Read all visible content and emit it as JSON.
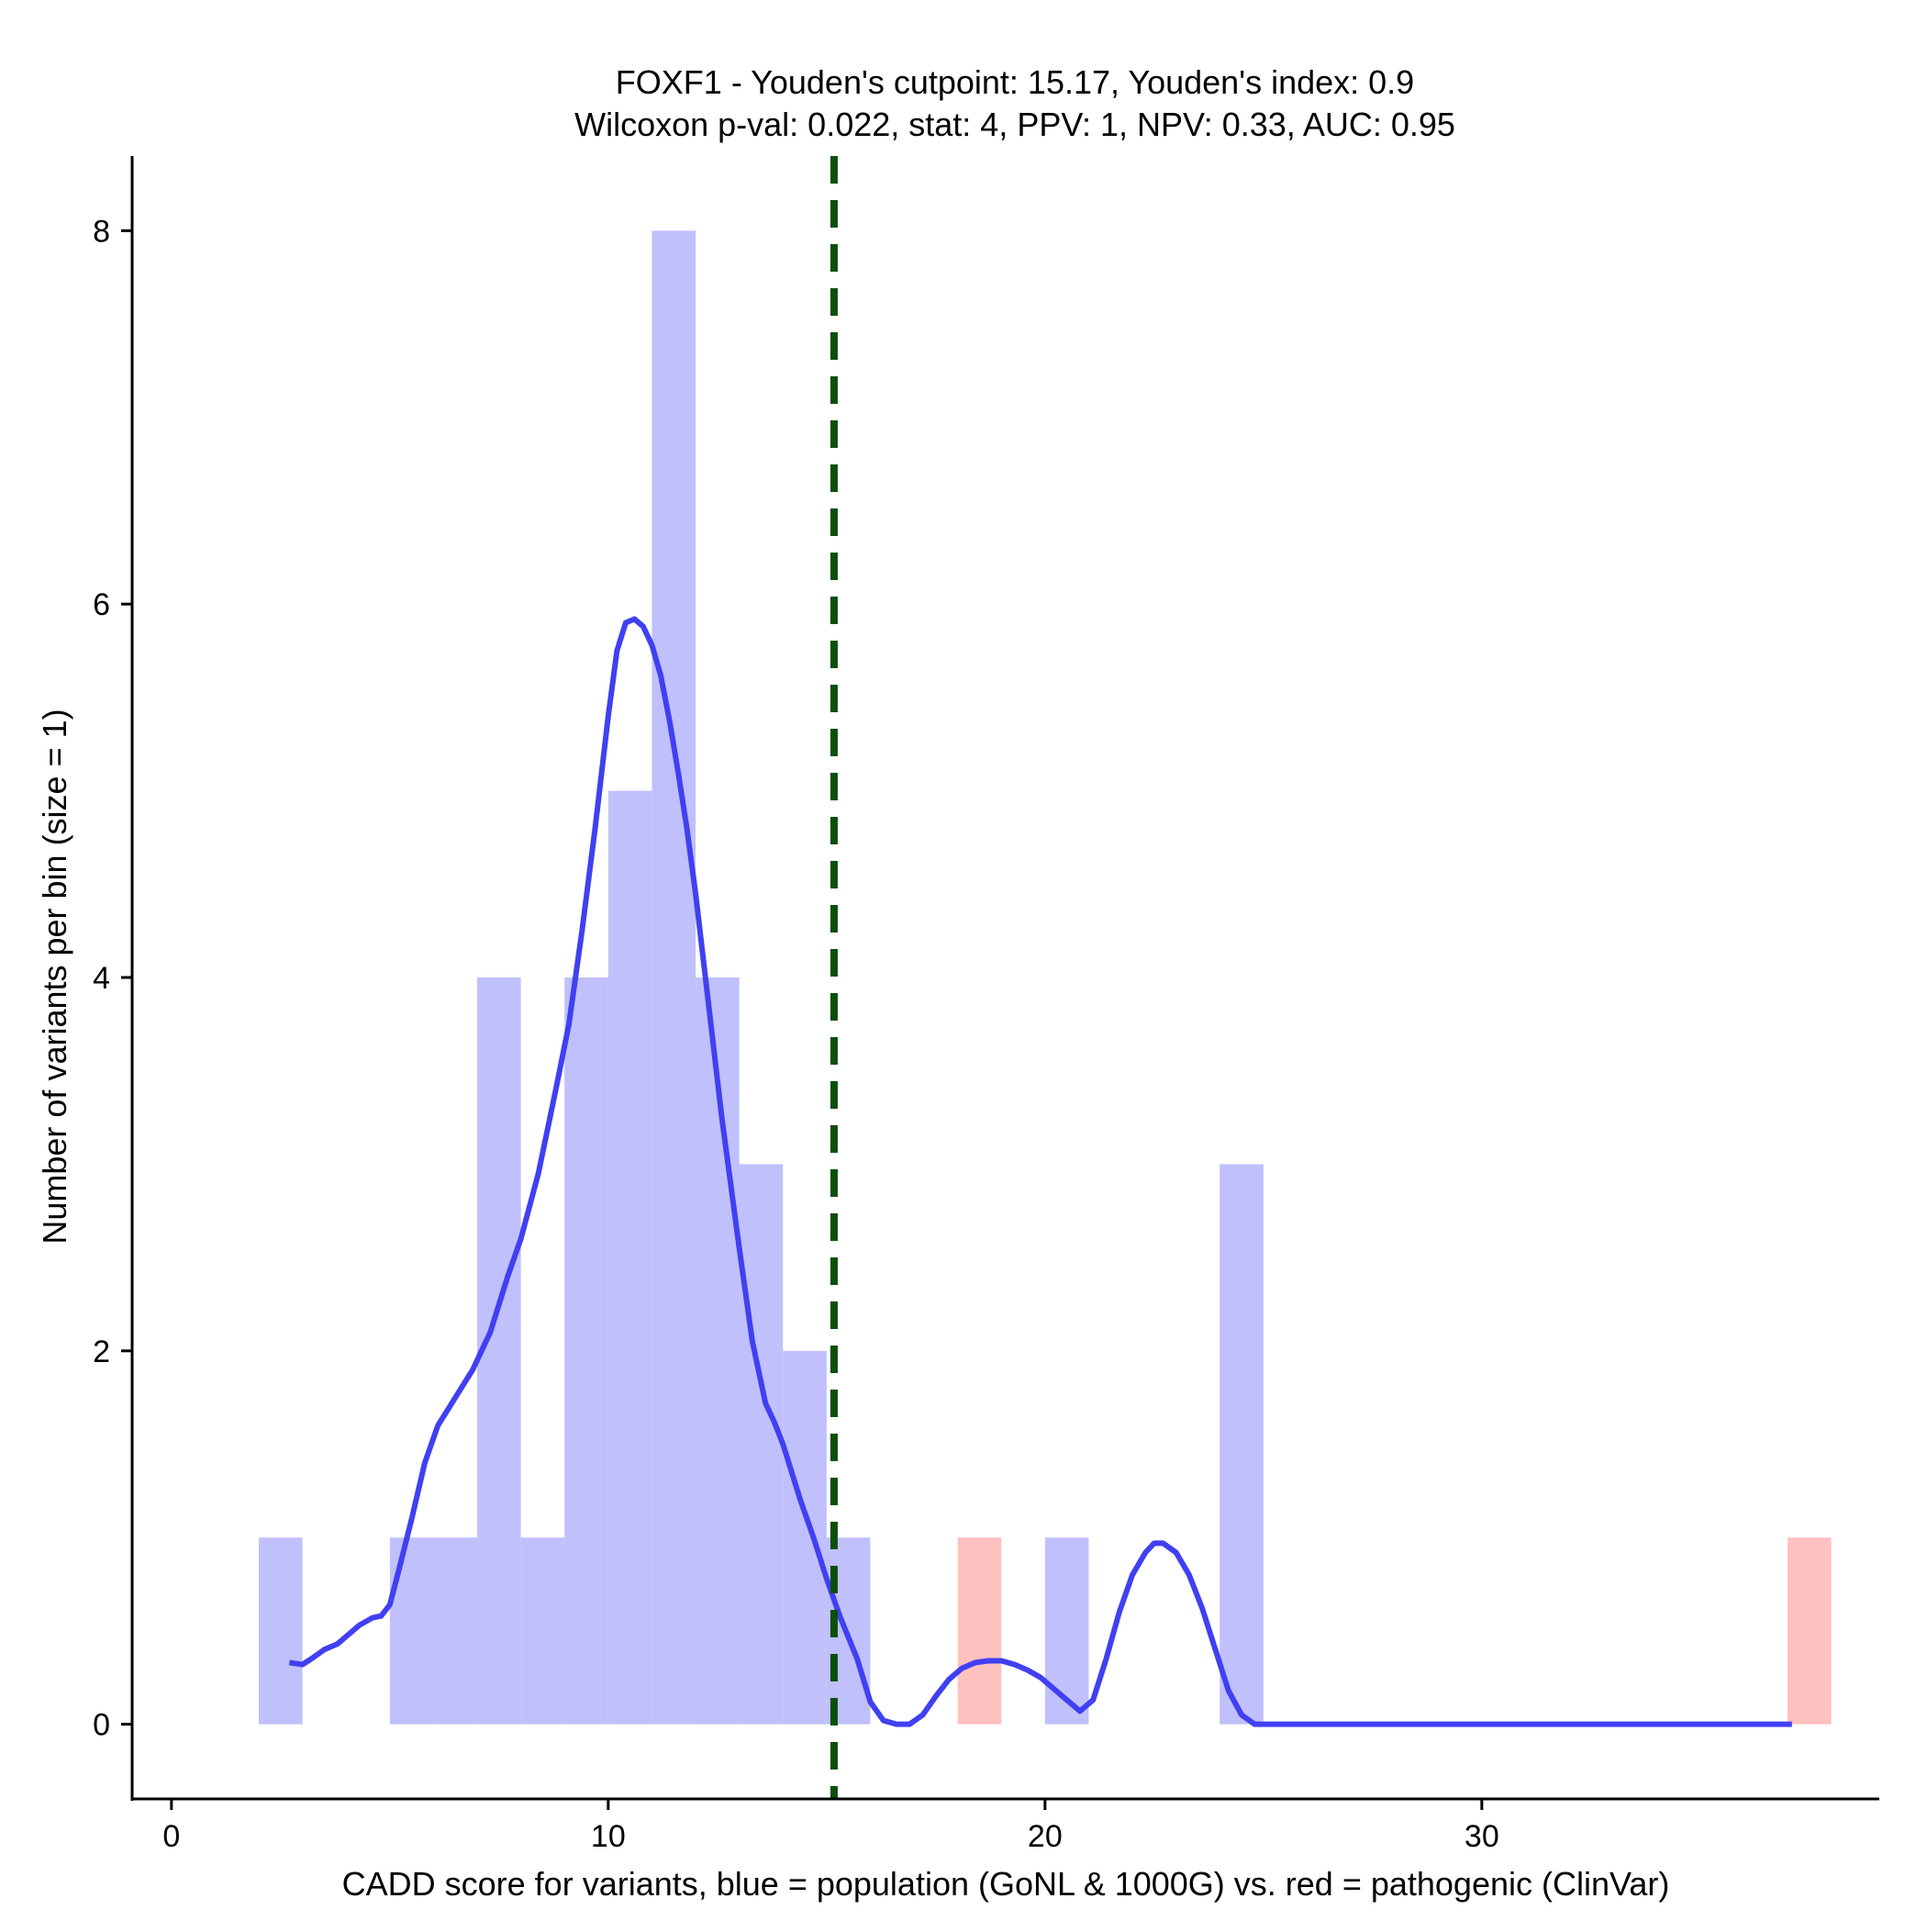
{
  "chart_data": {
    "type": "bar",
    "title": "FOXF1 - Youden's cutpoint: 15.17, Youden's index: 0.9",
    "subtitle": "Wilcoxon p-val: 0.022, stat: 4, PPV: 1, NPV: 0.33, AUC: 0.95",
    "xlabel": "CADD score for variants, blue = population (GoNL & 1000G) vs. red = pathogenic (ClinVar)",
    "ylabel": "Number of variants per bin (size = 1)",
    "xlim": [
      -0.9,
      39.1
    ],
    "ylim": [
      -0.4,
      8.4
    ],
    "x_ticks": [
      0,
      10,
      20,
      30
    ],
    "y_ticks": [
      0,
      2,
      4,
      6,
      8
    ],
    "bin_width": 1,
    "grid": false,
    "legend": "none",
    "cutpoint": 15.17,
    "colors": {
      "population": "#c0c0fc",
      "pathogenic": "#ffc0c0",
      "density": "#4040f2",
      "cutpoint": "#0b4f0b"
    },
    "series": [
      {
        "name": "population",
        "bins": [
          {
            "x0": 2,
            "x1": 3,
            "count": 1
          },
          {
            "x0": 5,
            "x1": 6,
            "count": 1
          },
          {
            "x0": 6,
            "x1": 7,
            "count": 1
          },
          {
            "x0": 7,
            "x1": 8,
            "count": 4
          },
          {
            "x0": 8,
            "x1": 9,
            "count": 1
          },
          {
            "x0": 9,
            "x1": 10,
            "count": 4
          },
          {
            "x0": 10,
            "x1": 11,
            "count": 5
          },
          {
            "x0": 11,
            "x1": 12,
            "count": 8
          },
          {
            "x0": 12,
            "x1": 13,
            "count": 4
          },
          {
            "x0": 13,
            "x1": 14,
            "count": 3
          },
          {
            "x0": 14,
            "x1": 15,
            "count": 2
          },
          {
            "x0": 15,
            "x1": 16,
            "count": 1
          },
          {
            "x0": 20,
            "x1": 21,
            "count": 1
          },
          {
            "x0": 24,
            "x1": 25,
            "count": 3
          }
        ]
      },
      {
        "name": "pathogenic",
        "bins": [
          {
            "x0": 18,
            "x1": 19,
            "count": 1
          },
          {
            "x0": 37,
            "x1": 38,
            "count": 1
          }
        ]
      }
    ],
    "density_curve": {
      "x": [
        2.7,
        3.0,
        3.2,
        3.5,
        3.8,
        4.0,
        4.3,
        4.6,
        4.8,
        5.0,
        5.2,
        5.5,
        5.8,
        6.1,
        6.5,
        6.9,
        7.3,
        7.7,
        8.0,
        8.4,
        8.8,
        9.1,
        9.4,
        9.7,
        10.0,
        10.2,
        10.4,
        10.6,
        10.8,
        11.0,
        11.2,
        11.4,
        11.6,
        11.8,
        12.0,
        12.2,
        12.4,
        12.6,
        12.8,
        13.0,
        13.3,
        13.6,
        13.8,
        14.0,
        14.2,
        14.4,
        14.7,
        15.0,
        15.3,
        15.7,
        16.0,
        16.3,
        16.6,
        16.9,
        17.2,
        17.5,
        17.8,
        18.1,
        18.4,
        18.7,
        19.0,
        19.3,
        19.6,
        19.9,
        20.2,
        20.5,
        20.8,
        21.1,
        21.4,
        21.7,
        22.0,
        22.3,
        22.5,
        22.7,
        23.0,
        23.3,
        23.6,
        23.9,
        24.2,
        24.5,
        24.8,
        25.1,
        25.4,
        25.7,
        26.0,
        26.3,
        26.6,
        26.9,
        27.1,
        27.4,
        28.0,
        30.0,
        33.0,
        36.0,
        37.1
      ],
      "y": [
        0.33,
        0.32,
        0.35,
        0.4,
        0.43,
        0.47,
        0.53,
        0.57,
        0.58,
        0.64,
        0.82,
        1.1,
        1.4,
        1.6,
        1.75,
        1.9,
        2.1,
        2.4,
        2.6,
        2.95,
        3.4,
        3.75,
        4.25,
        4.8,
        5.4,
        5.75,
        5.9,
        5.92,
        5.88,
        5.78,
        5.62,
        5.38,
        5.1,
        4.8,
        4.45,
        4.05,
        3.65,
        3.25,
        2.9,
        2.55,
        2.05,
        1.72,
        1.62,
        1.5,
        1.35,
        1.2,
        1.0,
        0.78,
        0.58,
        0.35,
        0.12,
        0.02,
        0.0,
        0.0,
        0.05,
        0.15,
        0.24,
        0.3,
        0.33,
        0.34,
        0.34,
        0.32,
        0.29,
        0.25,
        0.19,
        0.13,
        0.07,
        0.13,
        0.35,
        0.6,
        0.8,
        0.92,
        0.97,
        0.97,
        0.92,
        0.8,
        0.62,
        0.4,
        0.18,
        0.05,
        0.0,
        0.0,
        0.0,
        0.0,
        0.0,
        0.0,
        0.0,
        0.0,
        0.0,
        0.0,
        0.0,
        0.0,
        0.0,
        0.0,
        0.0
      ]
    }
  }
}
